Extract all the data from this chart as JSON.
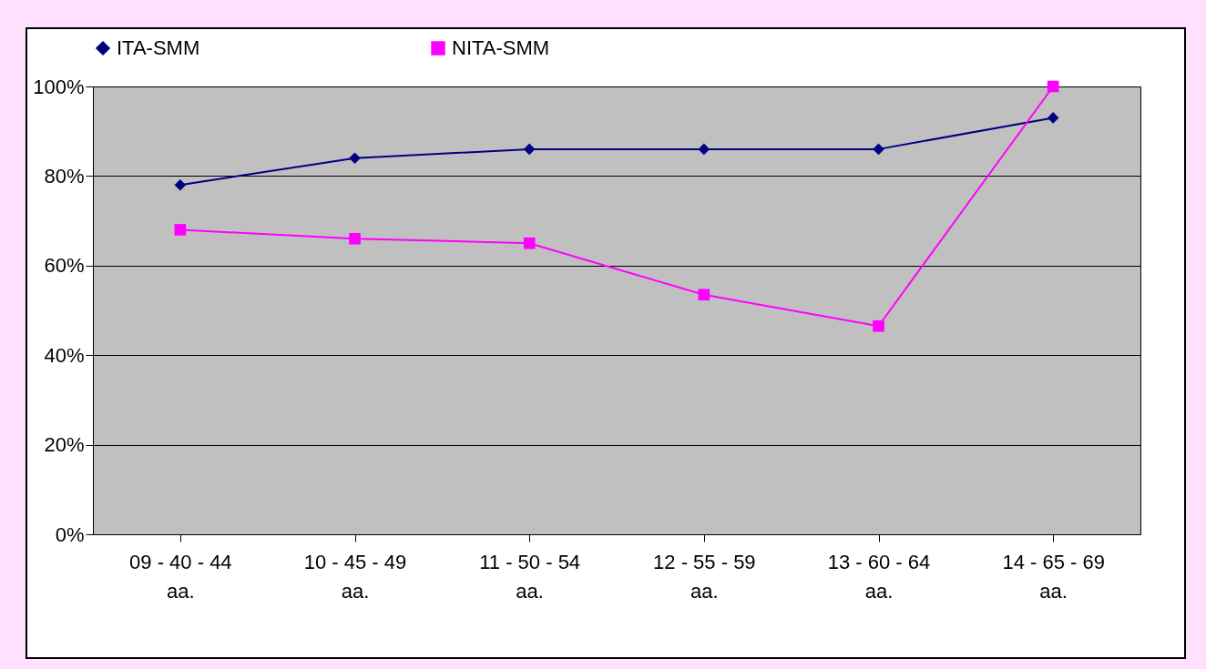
{
  "chart_data": {
    "type": "line",
    "categories": [
      "09 - 40 - 44 aa.",
      "10 - 45 - 49 aa.",
      "11 - 50 - 54 aa.",
      "12 - 55 - 59 aa.",
      "13 - 60 - 64 aa.",
      "14 - 65 - 69 aa."
    ],
    "series": [
      {
        "name": "ITA-SMM",
        "color": "#000080",
        "marker": "diamond",
        "values": [
          78,
          84,
          86,
          86,
          86,
          93
        ]
      },
      {
        "name": "NITA-SMM",
        "color": "#ff00ff",
        "marker": "square",
        "values": [
          68,
          66,
          65,
          53.5,
          46.5,
          100
        ]
      }
    ],
    "ylim": [
      0,
      100
    ],
    "yticks": [
      {
        "value": 0,
        "label": "0%"
      },
      {
        "value": 20,
        "label": "20%"
      },
      {
        "value": 40,
        "label": "40%"
      },
      {
        "value": 60,
        "label": "60%"
      },
      {
        "value": 80,
        "label": "80%"
      },
      {
        "value": 100,
        "label": "100%"
      }
    ],
    "grid": "y",
    "legend": "top"
  }
}
